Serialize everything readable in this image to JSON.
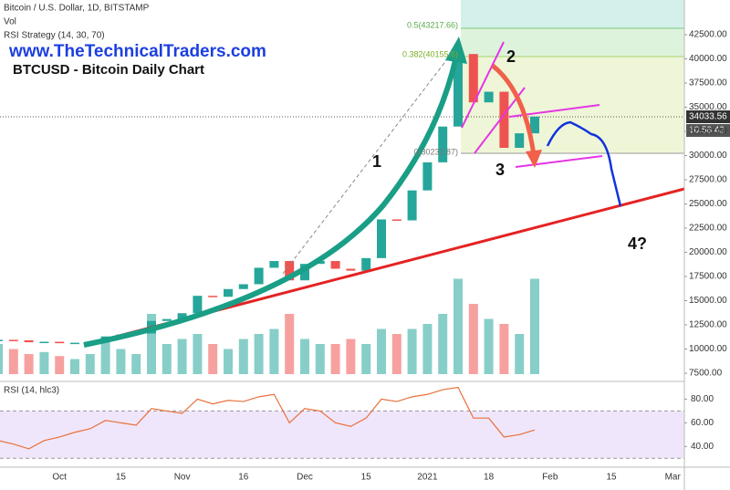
{
  "chart_data": [
    {
      "type": "candlestick",
      "title": "Bitcoin / U.S. Dollar, 1D, BITSTAMP",
      "indicator": "RSI Strategy (14, 30, 70)",
      "watermark": "www.TheTechnicalTraders.com",
      "subtitle": "BTCUSD - Bitcoin Daily Chart",
      "countdown": "10:58:42",
      "annotations": [
        "1",
        "2",
        "3",
        "4?"
      ],
      "fib_labels": [
        "0.5(43217.66)",
        "0.382(40155.6)",
        "0(30232.87)"
      ],
      "categories": [
        null,
        null,
        null,
        null,
        "Oct",
        null,
        null,
        null,
        "15",
        null,
        null,
        null,
        "Nov",
        null,
        null,
        null,
        "16",
        null,
        null,
        null,
        "Dec",
        null,
        null,
        null,
        "15",
        null,
        null,
        null,
        "2021",
        null,
        null,
        null,
        "18",
        null,
        null,
        null,
        "Feb",
        null,
        null,
        null,
        "15",
        null,
        null,
        null,
        "Mar"
      ],
      "values": [
        10950,
        10900,
        10700,
        10750,
        10600,
        10650,
        10700,
        11300,
        11500,
        11600,
        12900,
        13100,
        13700,
        15500,
        15400,
        16200,
        16700,
        18400,
        19100,
        17100,
        18800,
        19100,
        18300,
        18100,
        19400,
        23400,
        23300,
        26400,
        29300,
        33000,
        40500,
        35500,
        36600,
        30800,
        32300,
        34033.56,
        null,
        null,
        null,
        null,
        null,
        null,
        null,
        null,
        null
      ],
      "up_color": "#26a69a",
      "down_color": "#ef5350",
      "ylim": [
        6650,
        46085
      ],
      "yticks": [
        {
          "value": 7500,
          "label": "7500.00"
        },
        {
          "value": 10000,
          "label": "10000.00"
        },
        {
          "value": 12500,
          "label": "12500.00"
        },
        {
          "value": 15000,
          "label": "15000.00"
        },
        {
          "value": 17500,
          "label": "17500.00"
        },
        {
          "value": 20000,
          "label": "20000.00"
        },
        {
          "value": 22500,
          "label": "22500.00"
        },
        {
          "value": 25000,
          "label": "25000.00"
        },
        {
          "value": 27500,
          "label": "27500.00"
        },
        {
          "value": 30000,
          "label": "30000.00"
        },
        {
          "value": 32500,
          "label": "32500.00"
        },
        {
          "value": 35000,
          "label": "35000.00"
        },
        {
          "value": 37500,
          "label": "37500.00"
        },
        {
          "value": 40000,
          "label": "40000.00"
        },
        {
          "value": 42500,
          "label": "42500.00"
        }
      ]
    },
    {
      "type": "bar",
      "title": "Vol",
      "values": [
        30,
        25,
        20,
        22,
        18,
        15,
        20,
        35,
        25,
        20,
        60,
        30,
        35,
        40,
        30,
        25,
        35,
        40,
        45,
        60,
        35,
        30,
        30,
        35,
        30,
        45,
        40,
        45,
        50,
        60,
        95,
        70,
        55,
        50,
        40,
        95,
        null,
        null,
        null,
        null,
        null,
        null,
        null,
        null,
        null
      ],
      "ylim": [
        0,
        100
      ]
    },
    {
      "type": "line",
      "title": "RSI (14, hlc3)",
      "color": "#e8703a",
      "band": [
        30,
        70
      ],
      "band_color": "#e9dcfa",
      "values": [
        45,
        42,
        38,
        45,
        48,
        52,
        55,
        62,
        60,
        58,
        72,
        70,
        68,
        80,
        76,
        79,
        78,
        82,
        84,
        60,
        72,
        70,
        60,
        57,
        64,
        80,
        78,
        82,
        84,
        88,
        90,
        64,
        64,
        48,
        50,
        54,
        null,
        null,
        null,
        null,
        null,
        null,
        null,
        null,
        null
      ],
      "ylim": [
        22.5,
        95
      ],
      "yticks": [
        {
          "value": 40,
          "label": "40.00"
        },
        {
          "value": 60,
          "label": "60.00"
        },
        {
          "value": 80,
          "label": "80.00"
        }
      ]
    }
  ]
}
